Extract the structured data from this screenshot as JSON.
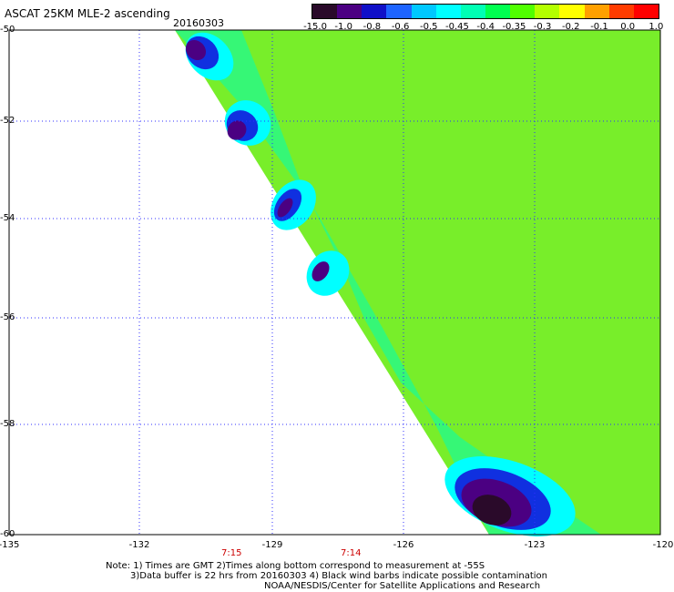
{
  "header": {
    "title": "ASCAT 25KM MLE-2 ascending",
    "date": "20160303"
  },
  "colorbar": {
    "labels": [
      "-15.0",
      "-1.0",
      "-0.8",
      "-0.6",
      "-0.5",
      "-0.45",
      "-0.4",
      "-0.35",
      "-0.3",
      "-0.2",
      "-0.1",
      "0.0",
      "1.0"
    ],
    "colors": [
      "#2a0a2a",
      "#4b0082",
      "#1010c8",
      "#1e64ff",
      "#00c8ff",
      "#00ffff",
      "#00ffb4",
      "#00ff50",
      "#50ff00",
      "#b4ff00",
      "#ffff00",
      "#ffa000",
      "#ff3c00",
      "#ff0000"
    ]
  },
  "map": {
    "lon_labels": [
      "-135",
      "-132",
      "-129",
      "-126",
      "-123",
      "-120"
    ],
    "lat_labels": [
      "-50",
      "-52",
      "-54",
      "-56",
      "-58",
      "-60"
    ],
    "time_labels": [
      "7:15",
      "7:14"
    ],
    "field_colors": {
      "background": "#78ee2a",
      "dark": "#2a0a2a",
      "purple": "#4b0082",
      "blue": "#1030e0",
      "cyan": "#00ffff",
      "teal": "#00ffb4",
      "green": "#40ff40"
    }
  },
  "notes": {
    "line1": "Note: 1) Times are GMT 2)Times along bottom correspond to measurement at -55S",
    "line2": "3)Data buffer is 22 hrs from 20160303 4) Black wind barbs indicate possible contamination",
    "line3": "NOAA/NESDIS/Center for Satellite Applications and Research"
  }
}
